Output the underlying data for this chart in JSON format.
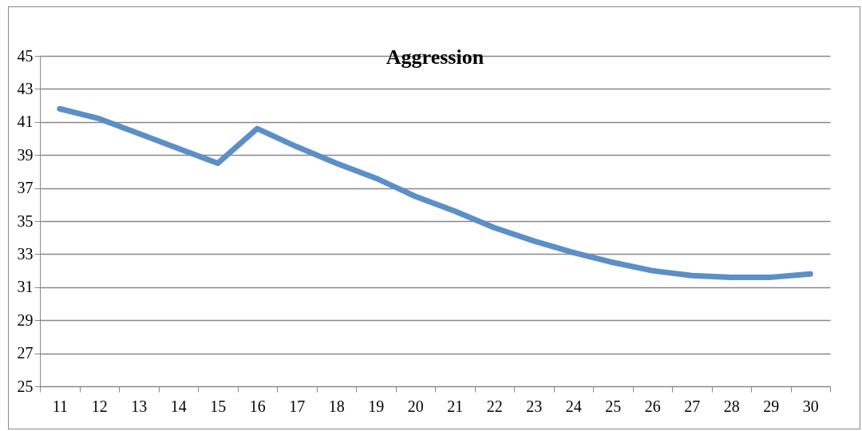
{
  "chart_data": {
    "type": "line",
    "title": "Aggression",
    "categories": [
      "11",
      "12",
      "13",
      "14",
      "15",
      "16",
      "17",
      "18",
      "19",
      "20",
      "21",
      "22",
      "23",
      "24",
      "25",
      "26",
      "27",
      "28",
      "29",
      "30"
    ],
    "series": [
      {
        "color": "#5b8fc7",
        "values": [
          41.8,
          41.2,
          40.3,
          39.4,
          38.5,
          40.6,
          39.5,
          38.5,
          37.6,
          36.5,
          35.6,
          34.6,
          33.8,
          33.1,
          32.5,
          32.0,
          31.7,
          31.6,
          31.6,
          31.8
        ]
      }
    ],
    "ylim": [
      25,
      45
    ],
    "yticks": [
      25,
      27,
      29,
      31,
      33,
      35,
      37,
      39,
      41,
      43,
      45
    ],
    "grid": "y",
    "legend": false,
    "marker": "none",
    "line_style": "solid"
  }
}
